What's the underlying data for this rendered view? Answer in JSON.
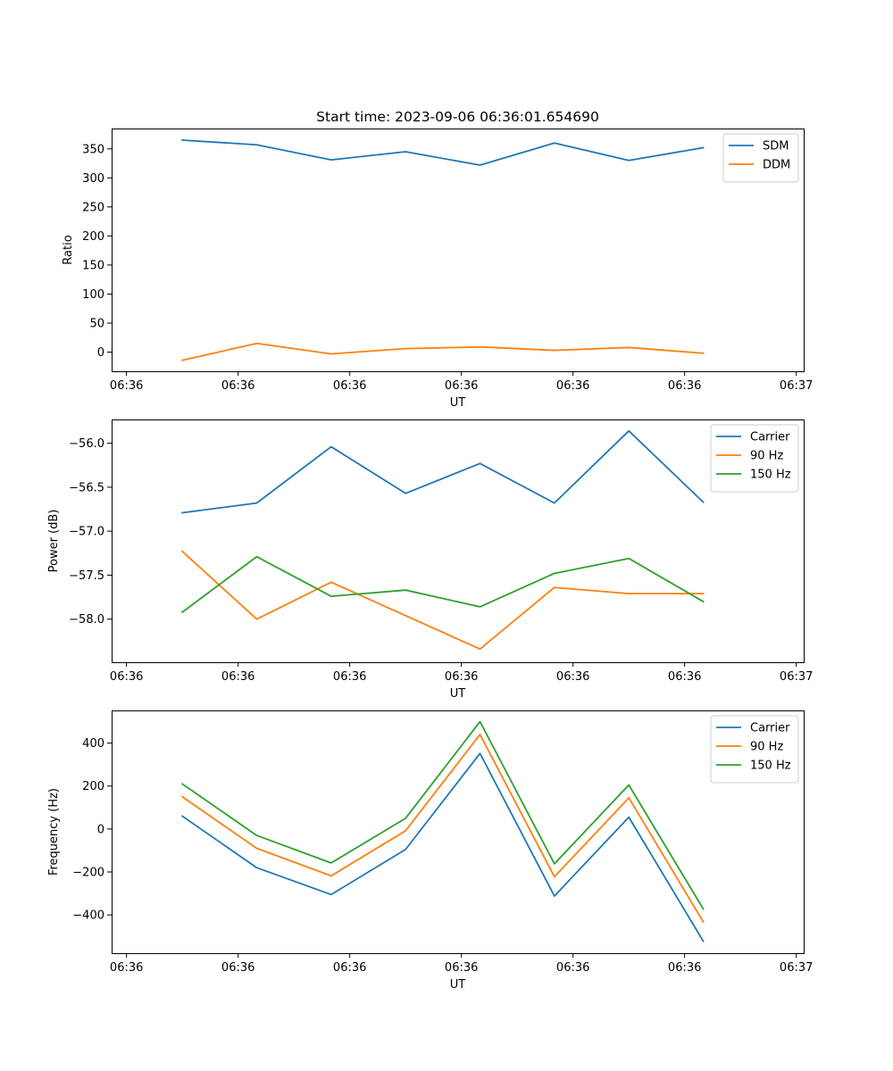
{
  "chart_data": [
    {
      "type": "line",
      "title": "Start time: 2023-09-06 06:36:01.654690",
      "xlabel": "UT",
      "ylabel": "Ratio",
      "xtick_labels": [
        "06:36",
        "06:36",
        "06:36",
        "06:36",
        "06:36",
        "06:36",
        "06:37"
      ],
      "yticks": [
        0,
        50,
        100,
        150,
        200,
        250,
        300,
        350
      ],
      "ytick_labels": [
        "0",
        "50",
        "100",
        "150",
        "200",
        "250",
        "300",
        "350"
      ],
      "xlim": [
        -0.2,
        9.1
      ],
      "ylim": [
        -33,
        385
      ],
      "legend_loc": "top-right",
      "x": [
        0.75,
        1.75,
        2.75,
        3.75,
        4.75,
        5.75,
        6.75,
        7.75
      ],
      "series": [
        {
          "name": "SDM",
          "color": "#1f77b4",
          "values": [
            365,
            357,
            331,
            345,
            322,
            360,
            330,
            352
          ]
        },
        {
          "name": "DDM",
          "color": "#ff7f0e",
          "values": [
            -14,
            15,
            -3,
            6,
            9,
            3,
            8,
            -2
          ]
        }
      ]
    },
    {
      "type": "line",
      "title": "",
      "xlabel": "UT",
      "ylabel": "Power (dB)",
      "xtick_labels": [
        "06:36",
        "06:36",
        "06:36",
        "06:36",
        "06:36",
        "06:36",
        "06:37"
      ],
      "yticks": [
        -58.0,
        -57.5,
        -57.0,
        -56.5,
        -56.0
      ],
      "ytick_labels": [
        "−58.0",
        "−57.5",
        "−57.0",
        "−56.5",
        "−56.0"
      ],
      "xlim": [
        -0.2,
        9.1
      ],
      "ylim": [
        -58.49,
        -55.73
      ],
      "legend_loc": "top-right",
      "x": [
        0.75,
        1.75,
        2.75,
        3.75,
        4.75,
        5.75,
        6.75,
        7.75
      ],
      "series": [
        {
          "name": "Carrier",
          "color": "#1f77b4",
          "values": [
            -56.79,
            -56.68,
            -56.04,
            -56.57,
            -56.23,
            -56.68,
            -55.86,
            -56.67
          ]
        },
        {
          "name": "90 Hz",
          "color": "#ff7f0e",
          "values": [
            -57.23,
            -58.0,
            -57.58,
            -57.96,
            -58.34,
            -57.64,
            -57.71,
            -57.71
          ]
        },
        {
          "name": "150 Hz",
          "color": "#2ca02c",
          "values": [
            -57.92,
            -57.29,
            -57.74,
            -57.67,
            -57.86,
            -57.48,
            -57.31,
            -57.8
          ]
        }
      ]
    },
    {
      "type": "line",
      "title": "",
      "xlabel": "UT",
      "ylabel": "Frequency (Hz)",
      "xtick_labels": [
        "06:36",
        "06:36",
        "06:36",
        "06:36",
        "06:36",
        "06:36",
        "06:37"
      ],
      "yticks": [
        -400,
        -200,
        0,
        200,
        400
      ],
      "ytick_labels": [
        "−400",
        "−200",
        "0",
        "200",
        "400"
      ],
      "xlim": [
        -0.2,
        9.1
      ],
      "ylim": [
        -578,
        552
      ],
      "legend_loc": "top-right",
      "x": [
        0.75,
        1.75,
        2.75,
        3.75,
        4.75,
        5.75,
        6.75,
        7.75
      ],
      "series": [
        {
          "name": "Carrier",
          "color": "#1f77b4",
          "values": [
            60,
            -180,
            -305,
            -95,
            352,
            -312,
            55,
            -522
          ]
        },
        {
          "name": "90 Hz",
          "color": "#ff7f0e",
          "values": [
            150,
            -90,
            -218,
            -8,
            440,
            -222,
            145,
            -432
          ]
        },
        {
          "name": "150 Hz",
          "color": "#2ca02c",
          "values": [
            210,
            -30,
            -158,
            50,
            500,
            -162,
            205,
            -372
          ]
        }
      ]
    }
  ]
}
